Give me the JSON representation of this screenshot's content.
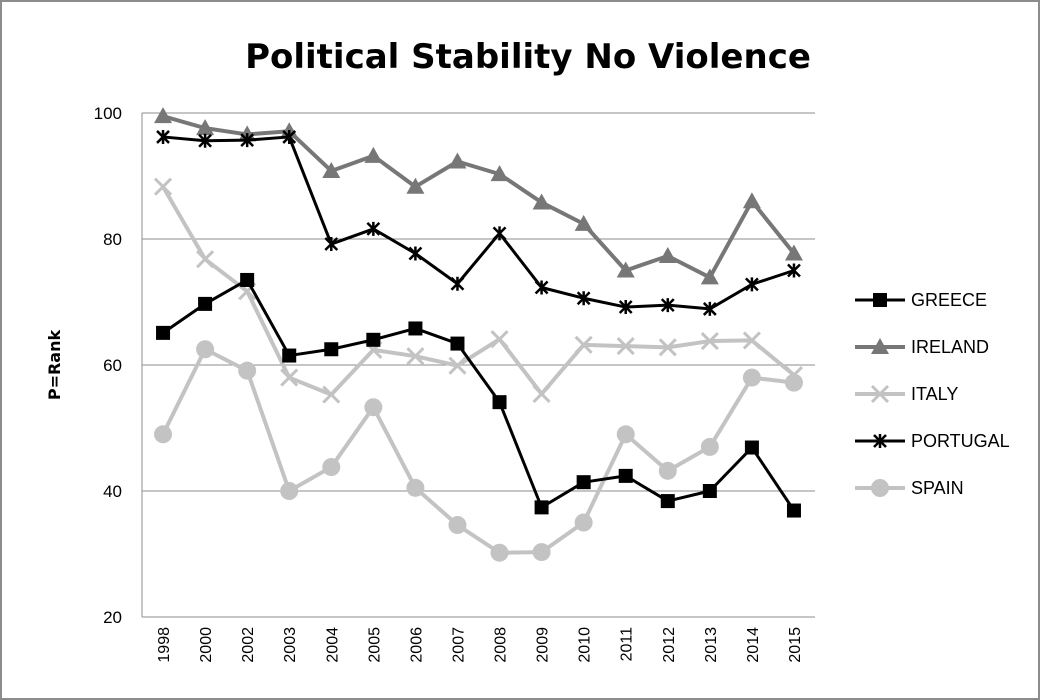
{
  "chart_data": {
    "type": "line",
    "title": "Political Stability No Violence",
    "xlabel": "",
    "ylabel": "P=Rank",
    "ylim": [
      20,
      100
    ],
    "yticks": [
      20,
      40,
      60,
      80,
      100
    ],
    "grid": true,
    "legend": "right",
    "categories": [
      "1998",
      "2000",
      "2002",
      "2003",
      "2004",
      "2005",
      "2006",
      "2007",
      "2008",
      "2009",
      "2010",
      "2011",
      "2012",
      "2013",
      "2014",
      "2015"
    ],
    "series": [
      {
        "name": "GREECE",
        "color": "#000000",
        "marker": "square",
        "values": [
          65.1,
          69.7,
          73.5,
          61.5,
          62.5,
          64.0,
          65.8,
          63.4,
          54.1,
          37.4,
          41.4,
          42.4,
          38.4,
          40.0,
          46.9,
          36.9
        ]
      },
      {
        "name": "IRELAND",
        "color": "#777777",
        "marker": "triangle",
        "values": [
          99.5,
          97.6,
          96.6,
          97.1,
          90.8,
          93.2,
          88.3,
          92.3,
          90.3,
          85.8,
          82.4,
          75.0,
          77.3,
          73.9,
          86.0,
          77.7
        ]
      },
      {
        "name": "ITALY",
        "color": "#c3c3c3",
        "marker": "x",
        "values": [
          88.3,
          76.8,
          71.7,
          58.0,
          55.3,
          62.4,
          61.4,
          59.9,
          64.1,
          55.4,
          63.2,
          63.0,
          62.8,
          63.8,
          63.9,
          58.4
        ]
      },
      {
        "name": "PORTUGAL",
        "color": "#000000",
        "marker": "star",
        "values": [
          96.2,
          95.6,
          95.7,
          96.2,
          79.2,
          81.6,
          77.7,
          72.9,
          80.9,
          72.3,
          70.6,
          69.2,
          69.5,
          68.9,
          72.8,
          75.0
        ]
      },
      {
        "name": "SPAIN",
        "color": "#c3c3c3",
        "marker": "circle",
        "values": [
          49.0,
          62.5,
          59.1,
          40.0,
          43.8,
          53.3,
          40.5,
          34.6,
          30.2,
          30.3,
          35.0,
          49.0,
          43.2,
          47.0,
          58.0,
          57.2
        ]
      }
    ]
  }
}
